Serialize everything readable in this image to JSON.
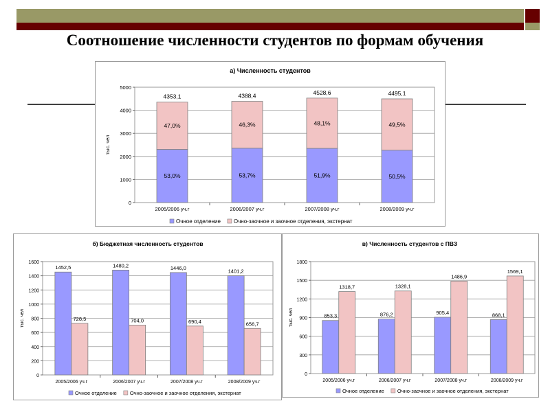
{
  "page": {
    "title": "Соотношение численности студентов по формам обучения"
  },
  "colors": {
    "olive": "#999966",
    "maroon": "#660000",
    "full_time": "#9999ff",
    "part_time": "#f2c4c4"
  },
  "chart_data": [
    {
      "type": "bar",
      "stacked": true,
      "title": "а) Численность студентов",
      "ylabel": "тыс. чел",
      "ylim": [
        0,
        5000
      ],
      "yticks": [
        0,
        1000,
        2000,
        3000,
        4000,
        5000
      ],
      "grid": true,
      "legend_position": "bottom",
      "categories": [
        "2005/2006 уч.г",
        "2006/2007 уч.г",
        "2007/2008 уч.г",
        "2008/2009 уч.г"
      ],
      "totals": [
        "4353,1",
        "4388,4",
        "4528,6",
        "4495,1"
      ],
      "series": [
        {
          "name": "Очное отделение",
          "values": [
            2307,
            2357,
            2350,
            2270
          ],
          "labels": [
            "53,0%",
            "53,7%",
            "51,9%",
            "50,5%"
          ]
        },
        {
          "name": "Очно-заочное и заочное отделения, экстернат",
          "values": [
            2046,
            2031,
            2178,
            2225
          ],
          "labels": [
            "47,0%",
            "46,3%",
            "48,1%",
            "49,5%"
          ]
        }
      ]
    },
    {
      "type": "bar",
      "title": "б) Бюджетная численность студентов",
      "ylabel": "тыс. чел",
      "ylim": [
        0,
        1600
      ],
      "yticks": [
        0,
        200,
        400,
        600,
        800,
        1000,
        1200,
        1400,
        1600
      ],
      "grid": true,
      "legend_position": "bottom",
      "categories": [
        "2005/2006 уч.г",
        "2006/2007 уч.г",
        "2007/2008 уч.г",
        "2008/2009 уч.г"
      ],
      "series": [
        {
          "name": "Очное отделение",
          "values": [
            1452.5,
            1480.2,
            1446.0,
            1401.2
          ],
          "labels": [
            "1452,5",
            "1480,2",
            "1446,0",
            "1401,2"
          ]
        },
        {
          "name": "Очно-заочное и заочное отделения, экстернат",
          "values": [
            728.5,
            704.0,
            690.4,
            656.7
          ],
          "labels": [
            "728,5",
            "704,0",
            "690,4",
            "656,7"
          ]
        }
      ]
    },
    {
      "type": "bar",
      "title": "в) Численность студентов с ПВЗ",
      "ylabel": "тыс. чел",
      "ylim": [
        0,
        1800
      ],
      "yticks": [
        0,
        300,
        600,
        900,
        1200,
        1500,
        1800
      ],
      "grid": true,
      "legend_position": "bottom",
      "categories": [
        "2005/2006 уч.г",
        "2006/2007 уч.г",
        "2007/2008 уч.г",
        "2008/2009 уч.г"
      ],
      "series": [
        {
          "name": "Очное отделение",
          "values": [
            853.3,
            876.2,
            905.4,
            868.1
          ],
          "labels": [
            "853,3",
            "876,2",
            "905,4",
            "868,1"
          ]
        },
        {
          "name": "Очно-заочное и заочное отделения, экстернат",
          "values": [
            1318.7,
            1328.1,
            1486.9,
            1569.1
          ],
          "labels": [
            "1318,7",
            "1328,1",
            "1486,9",
            "1569,1"
          ]
        }
      ]
    }
  ]
}
